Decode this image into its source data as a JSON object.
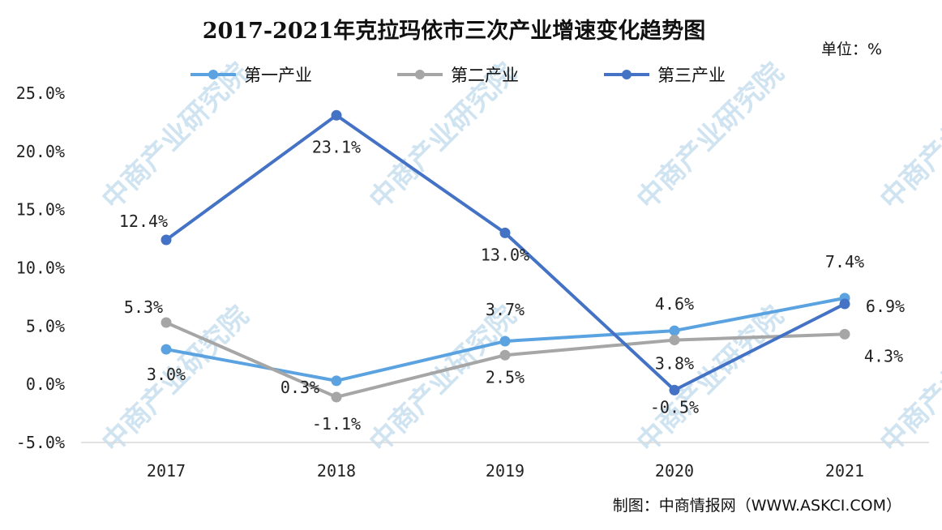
{
  "unit_label": "单位：%",
  "source": "制图：中商情报网（WWW.ASKCI.COM）",
  "watermark": "中商产业研究院",
  "chart_data": {
    "type": "line",
    "title": "2017-2021年克拉玛依市三次产业增速变化趋势图",
    "categories": [
      "2017",
      "2018",
      "2019",
      "2020",
      "2021"
    ],
    "ylim": [
      -5,
      25
    ],
    "yticks": [
      -5,
      0,
      5,
      10,
      15,
      20,
      25
    ],
    "ytick_labels": [
      "-5.0%",
      "0.0%",
      "5.0%",
      "10.0%",
      "15.0%",
      "20.0%",
      "25.0%"
    ],
    "grid": false,
    "legend_position": "top",
    "series": [
      {
        "name": "第一产业",
        "color": "#5ba3e0",
        "values": [
          3.0,
          0.3,
          3.7,
          4.6,
          7.4
        ],
        "labels": [
          "3.0%",
          "0.3%",
          "3.7%",
          "4.6%",
          "7.4%"
        ]
      },
      {
        "name": "第二产业",
        "color": "#a6a6a6",
        "values": [
          5.3,
          -1.1,
          2.5,
          3.8,
          4.3
        ],
        "labels": [
          "5.3%",
          "-1.1%",
          "2.5%",
          "3.8%",
          "4.3%"
        ]
      },
      {
        "name": "第三产业",
        "color": "#4472c4",
        "values": [
          12.4,
          23.1,
          13.0,
          -0.5,
          6.9
        ],
        "labels": [
          "12.4%",
          "23.1%",
          "13.0%",
          "-0.5%",
          "6.9%"
        ]
      }
    ]
  }
}
